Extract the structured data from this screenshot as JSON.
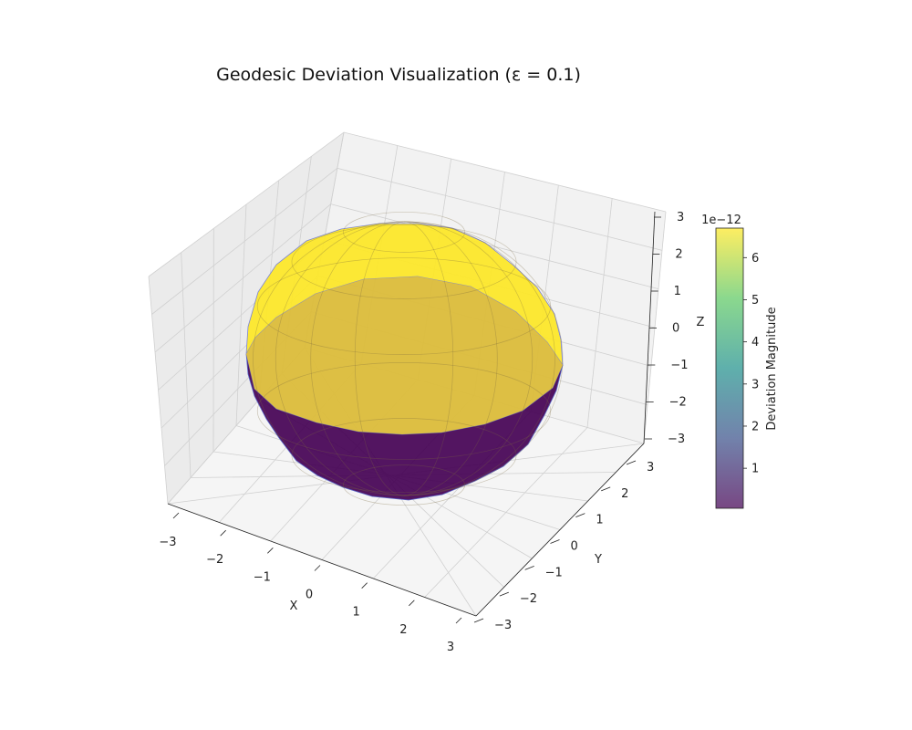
{
  "chart_data": {
    "type": "surface3d",
    "title": "Geodesic Deviation Visualization (ε = 0.1)",
    "xlabel": "X",
    "ylabel": "Y",
    "zlabel": "Z",
    "x_ticks": [
      "−3",
      "−2",
      "−1",
      "0",
      "1",
      "2",
      "3"
    ],
    "y_ticks": [
      "−3",
      "−2",
      "−1",
      "0",
      "1",
      "2",
      "3"
    ],
    "z_ticks": [
      "−3",
      "−2",
      "−1",
      "0",
      "1",
      "2",
      "3"
    ],
    "xlim": [
      -3,
      3
    ],
    "ylim": [
      -3,
      3
    ],
    "zlim": [
      -3,
      3
    ],
    "grid": true,
    "surface": {
      "shape": "sphere",
      "radius": 3,
      "upper_hemisphere_deviation": 6.6,
      "lower_hemisphere_deviation": 0.05,
      "upper_color": "#fde725",
      "lower_color": "#440154",
      "alpha": 0.8
    },
    "colorbar": {
      "label": "Deviation Magnitude",
      "scale_text": "1e−12",
      "ticks": [
        "1",
        "2",
        "3",
        "4",
        "5",
        "6"
      ],
      "tick_values": [
        1,
        2,
        3,
        4,
        5,
        6
      ],
      "range": [
        0.05,
        6.7
      ],
      "colormap": [
        "#440154",
        "#3b528b",
        "#21918c",
        "#5ec962",
        "#fde725"
      ]
    }
  }
}
